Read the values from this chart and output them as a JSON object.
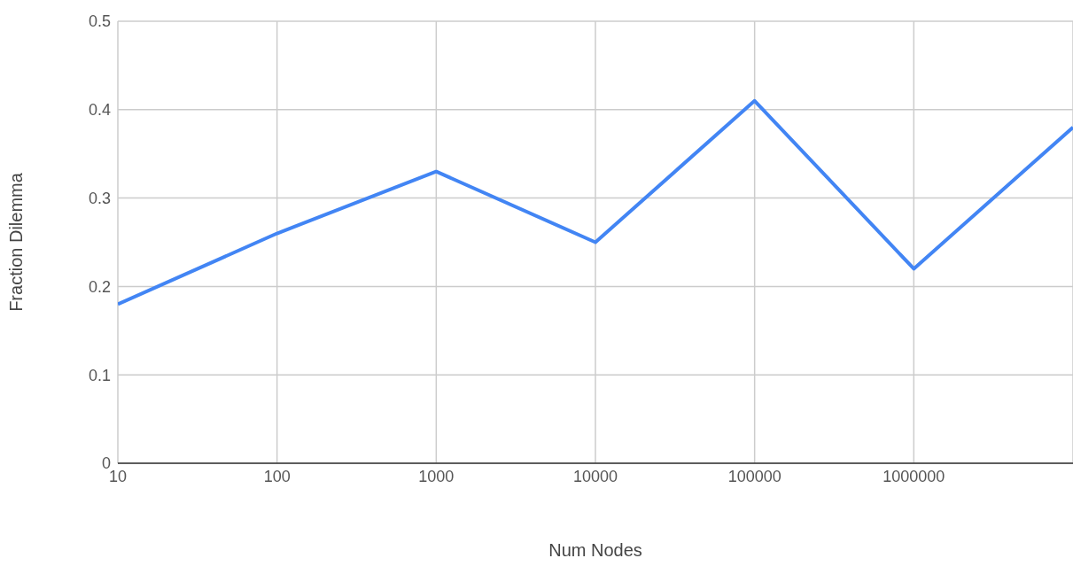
{
  "chart_data": {
    "type": "line",
    "xlabel": "Num Nodes",
    "ylabel": "Fraction Dilemma",
    "x": [
      10,
      100,
      1000,
      10000,
      100000,
      1000000,
      10000000
    ],
    "series": [
      {
        "color": "#4285f4",
        "values": [
          0.18,
          0.26,
          0.33,
          0.25,
          0.41,
          0.22,
          0.38
        ]
      }
    ],
    "xlim": [
      10,
      10000000
    ],
    "xticks": [
      10,
      100,
      1000,
      10000,
      100000,
      1000000
    ],
    "ylim": [
      0,
      0.5
    ],
    "yticks": [
      0,
      0.1,
      0.2,
      0.3,
      0.4,
      0.5
    ],
    "log": "x",
    "grid": true,
    "legend": false,
    "marker": "none",
    "line_style": "solid"
  }
}
